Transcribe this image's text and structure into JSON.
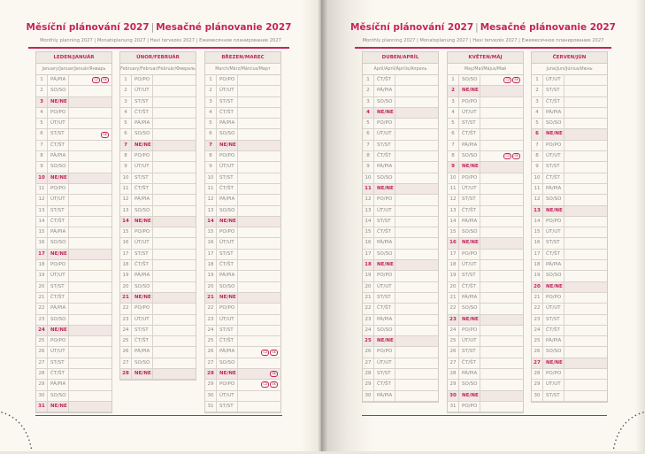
{
  "title_cz": "Měsíční plánování 2027",
  "title_sk": "Mesačné plánovanie 2027",
  "subtitle": "Monthly planning 2027 | Monatsplanung 2027 | Havi tervezés 2027 | Ежемесячное планирование 2027",
  "colors": {
    "accent": "#c2255c",
    "sunday_bg": "#f1e7e3"
  },
  "left_page": {
    "months": [
      {
        "name": "LEDEN/JANUÁR",
        "sub": "January/Januar/Január/Январь",
        "days": [
          "PÁ/PIA",
          "SO/SO",
          "NE/NE",
          "PO/PO",
          "ÚT/UT",
          "ST/ST",
          "ČT/ŠT",
          "PÁ/PIA",
          "SO/SO",
          "NE/NE",
          "PO/PO",
          "ÚT/UT",
          "ST/ST",
          "ČT/ŠT",
          "PÁ/PIA",
          "SO/SO",
          "NE/NE",
          "PO/PO",
          "ÚT/UT",
          "ST/ST",
          "ČT/ŠT",
          "PÁ/PIA",
          "SO/SO",
          "NE/NE",
          "PO/PO",
          "ÚT/UT",
          "ST/ST",
          "ČT/ŠT",
          "PÁ/PIA",
          "SO/SO",
          "NE/NE"
        ],
        "holidays": {
          "1": [
            "CZ",
            "SK"
          ],
          "6": [
            "SK"
          ]
        }
      },
      {
        "name": "ÚNOR/FEBRUÁR",
        "sub": "February/Februar/Február/Февраль",
        "days": [
          "PO/PO",
          "ÚT/UT",
          "ST/ST",
          "ČT/ŠT",
          "PÁ/PIA",
          "SO/SO",
          "NE/NE",
          "PO/PO",
          "ÚT/UT",
          "ST/ST",
          "ČT/ŠT",
          "PÁ/PIA",
          "SO/SO",
          "NE/NE",
          "PO/PO",
          "ÚT/UT",
          "ST/ST",
          "ČT/ŠT",
          "PÁ/PIA",
          "SO/SO",
          "NE/NE",
          "PO/PO",
          "ÚT/UT",
          "ST/ST",
          "ČT/ŠT",
          "PÁ/PIA",
          "SO/SO",
          "NE/NE"
        ],
        "holidays": {}
      },
      {
        "name": "BŘEZEN/MAREC",
        "sub": "March/März/Március/Март",
        "days": [
          "PO/PO",
          "ÚT/UT",
          "ST/ST",
          "ČT/ŠT",
          "PÁ/PIA",
          "SO/SO",
          "NE/NE",
          "PO/PO",
          "ÚT/UT",
          "ST/ST",
          "ČT/ŠT",
          "PÁ/PIA",
          "SO/SO",
          "NE/NE",
          "PO/PO",
          "ÚT/UT",
          "ST/ST",
          "ČT/ŠT",
          "PÁ/PIA",
          "SO/SO",
          "NE/NE",
          "PO/PO",
          "ÚT/UT",
          "ST/ST",
          "ČT/ŠT",
          "PÁ/PIA",
          "SO/SO",
          "NE/NE",
          "PO/PO",
          "ÚT/UT",
          "ST/ST"
        ],
        "holidays": {
          "26": [
            "CZ",
            "SK"
          ],
          "28": [
            "SK"
          ],
          "29": [
            "CZ",
            "SK"
          ]
        }
      }
    ]
  },
  "right_page": {
    "months": [
      {
        "name": "DUBEN/APRÍL",
        "sub": "April/April/Április/Апрель",
        "days": [
          "ČT/ŠT",
          "PÁ/PIA",
          "SO/SO",
          "NE/NE",
          "PO/PO",
          "ÚT/UT",
          "ST/ST",
          "ČT/ŠT",
          "PÁ/PIA",
          "SO/SO",
          "NE/NE",
          "PO/PO",
          "ÚT/UT",
          "ST/ST",
          "ČT/ŠT",
          "PÁ/PIA",
          "SO/SO",
          "NE/NE",
          "PO/PO",
          "ÚT/UT",
          "ST/ST",
          "ČT/ŠT",
          "PÁ/PIA",
          "SO/SO",
          "NE/NE",
          "PO/PO",
          "ÚT/UT",
          "ST/ST",
          "ČT/ŠT",
          "PÁ/PIA"
        ],
        "holidays": {}
      },
      {
        "name": "KVĚTEN/MÁJ",
        "sub": "May/Mai/Május/Май",
        "days": [
          "SO/SO",
          "NE/NE",
          "PO/PO",
          "ÚT/UT",
          "ST/ST",
          "ČT/ŠT",
          "PÁ/PIA",
          "SO/SO",
          "NE/NE",
          "PO/PO",
          "ÚT/UT",
          "ST/ST",
          "ČT/ŠT",
          "PÁ/PIA",
          "SO/SO",
          "NE/NE",
          "PO/PO",
          "ÚT/UT",
          "ST/ST",
          "ČT/ŠT",
          "PÁ/PIA",
          "SO/SO",
          "NE/NE",
          "PO/PO",
          "ÚT/UT",
          "ST/ST",
          "ČT/ŠT",
          "PÁ/PIA",
          "SO/SO",
          "NE/NE",
          "PO/PO"
        ],
        "holidays": {
          "1": [
            "CZ",
            "SK"
          ],
          "8": [
            "CZ",
            "SK"
          ]
        }
      },
      {
        "name": "ČERVEN/JÚN",
        "sub": "June/Juni/Június/Июнь",
        "days": [
          "ÚT/UT",
          "ST/ST",
          "ČT/ŠT",
          "PÁ/PIA",
          "SO/SO",
          "NE/NE",
          "PO/PO",
          "ÚT/UT",
          "ST/ST",
          "ČT/ŠT",
          "PÁ/PIA",
          "SO/SO",
          "NE/NE",
          "PO/PO",
          "ÚT/UT",
          "ST/ST",
          "ČT/ŠT",
          "PÁ/PIA",
          "SO/SO",
          "NE/NE",
          "PO/PO",
          "ÚT/UT",
          "ST/ST",
          "ČT/ŠT",
          "PÁ/PIA",
          "SO/SO",
          "NE/NE",
          "PO/PO",
          "ÚT/UT",
          "ST/ST"
        ],
        "holidays": {}
      }
    ]
  }
}
